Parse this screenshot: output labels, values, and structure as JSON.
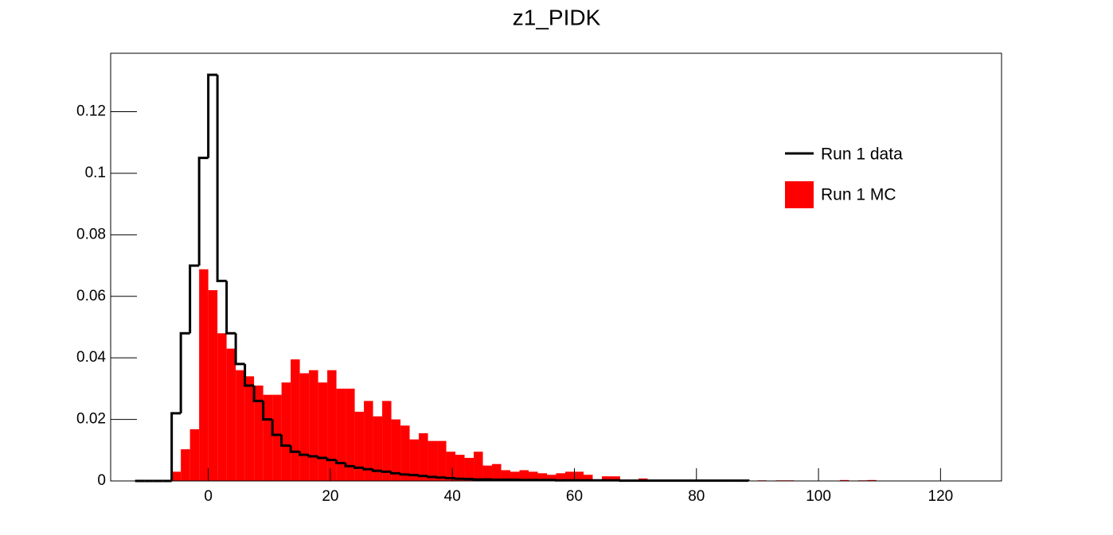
{
  "chart_data": {
    "type": "histogram",
    "title": "z1_PIDK",
    "bins": [
      -12,
      -10.5,
      -9,
      -7.5,
      -6,
      -4.5,
      -3,
      -1.5,
      0,
      1.5,
      3,
      4.5,
      6,
      7.5,
      9,
      10.5,
      12,
      13.5,
      15,
      16.5,
      18,
      19.5,
      21,
      22.5,
      24,
      25.5,
      27,
      28.5,
      30,
      31.5,
      33,
      34.5,
      36,
      37.5,
      39,
      40.5,
      42,
      43.5,
      45,
      46.5,
      48,
      49.5,
      51,
      52.5,
      54,
      55.5,
      57,
      58.5,
      60,
      61.5,
      63,
      64.5,
      66,
      67.5,
      69,
      70.5,
      72,
      73.5,
      75,
      76.5,
      78,
      79.5,
      81,
      82.5,
      84,
      85.5,
      87,
      88.5,
      90,
      91.5,
      93,
      94.5,
      96,
      97.5,
      99,
      100.5,
      102,
      103.5,
      105,
      106.5,
      108,
      109.5,
      111
    ],
    "series": [
      {
        "name": "Run 1 data",
        "color": "#000000",
        "style": "step",
        "values": [
          0,
          0,
          0,
          0,
          0.022,
          0.048,
          0.07,
          0.105,
          0.132,
          0.065,
          0.048,
          0.038,
          0.031,
          0.026,
          0.02,
          0.015,
          0.0115,
          0.0095,
          0.0085,
          0.008,
          0.0075,
          0.0068,
          0.0058,
          0.0048,
          0.0043,
          0.0038,
          0.0033,
          0.003,
          0.0025,
          0.0021,
          0.0019,
          0.0016,
          0.0013,
          0.0011,
          0.0009,
          0.0007,
          0.0006,
          0.0005,
          0.0005,
          0.0004,
          0.0004,
          0.0004,
          0.0003,
          0.0003,
          0.0003,
          0.0003,
          0.0002,
          0.0002,
          0.0002,
          0.0002,
          0.0002,
          0.0002,
          0.0002,
          0.0001,
          0.0001,
          0.0001,
          0.0001,
          0.0001,
          0.0001,
          0.0001,
          0.0001,
          0.0001,
          0.0001,
          0.0001,
          0.0001,
          0.0001,
          0.0001,
          null,
          null,
          null,
          null,
          null,
          null,
          null,
          null,
          null,
          null,
          null,
          null,
          null,
          null,
          null
        ]
      },
      {
        "name": "Run 1 MC",
        "color": "#ff0000",
        "style": "filled",
        "values": [
          0,
          0,
          0,
          0,
          0.003,
          0.0103,
          0.0168,
          0.0688,
          0.062,
          0.048,
          0.043,
          0.036,
          0.034,
          0.031,
          0.028,
          0.028,
          0.032,
          0.0395,
          0.035,
          0.036,
          0.032,
          0.036,
          0.03,
          0.03,
          0.0225,
          0.026,
          0.021,
          0.026,
          0.02,
          0.018,
          0.0135,
          0.0155,
          0.013,
          0.013,
          0.0095,
          0.0085,
          0.0075,
          0.0095,
          0.005,
          0.0055,
          0.0035,
          0.003,
          0.0035,
          0.003,
          0.0025,
          0.002,
          0.0025,
          0.003,
          0.003,
          0.002,
          0.0005,
          0.0015,
          0.0015,
          0.0003,
          0.0003,
          0.0008,
          0.0003,
          0.0003,
          0.0002,
          0.0002,
          0.0001,
          0.0003,
          0.0003,
          0.0002,
          0.0003,
          0.0003,
          0.0001,
          0,
          0.0002,
          0,
          0.0002,
          0.0002,
          0,
          0,
          0,
          0,
          0,
          0.0003,
          0,
          0.0002,
          0.0003,
          0
        ]
      }
    ],
    "xlim": [
      -16,
      130
    ],
    "xticks": [
      0,
      20,
      40,
      60,
      80,
      100,
      120
    ],
    "ylim": [
      0,
      0.139
    ],
    "yticks": [
      0,
      0.02,
      0.04,
      0.06,
      0.08,
      0.1,
      0.12
    ],
    "legend": "top-right"
  }
}
